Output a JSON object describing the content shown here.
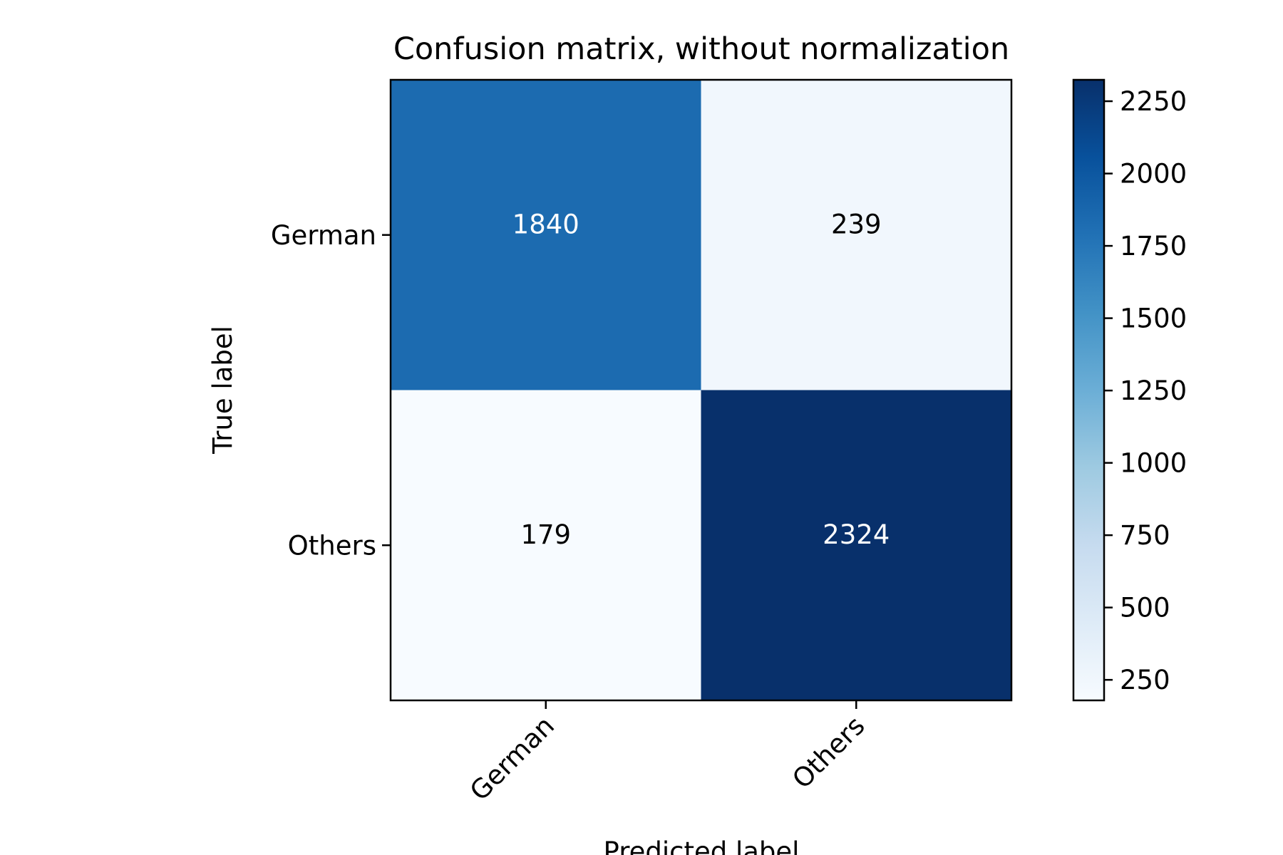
{
  "chart_data": {
    "type": "heatmap",
    "title": "Confusion matrix, without normalization",
    "xlabel": "Predicted label",
    "ylabel": "True label",
    "x_categories": [
      "German",
      "Others"
    ],
    "y_categories": [
      "German",
      "Others"
    ],
    "matrix": [
      [
        1840,
        239
      ],
      [
        179,
        2324
      ]
    ],
    "colormap": "Blues",
    "colors": {
      "cell_1840": "#1c6aaf",
      "cell_239": "#eff6fd",
      "cell_179": "#f7fbff",
      "cell_2324": "#08306b",
      "text_dark_cell": "#ffffff",
      "text_light_cell": "#000000"
    },
    "colorbar": {
      "min": 179,
      "max": 2324,
      "ticks": [
        "250",
        "500",
        "750",
        "1000",
        "1250",
        "1500",
        "1750",
        "2000",
        "2250"
      ]
    }
  }
}
